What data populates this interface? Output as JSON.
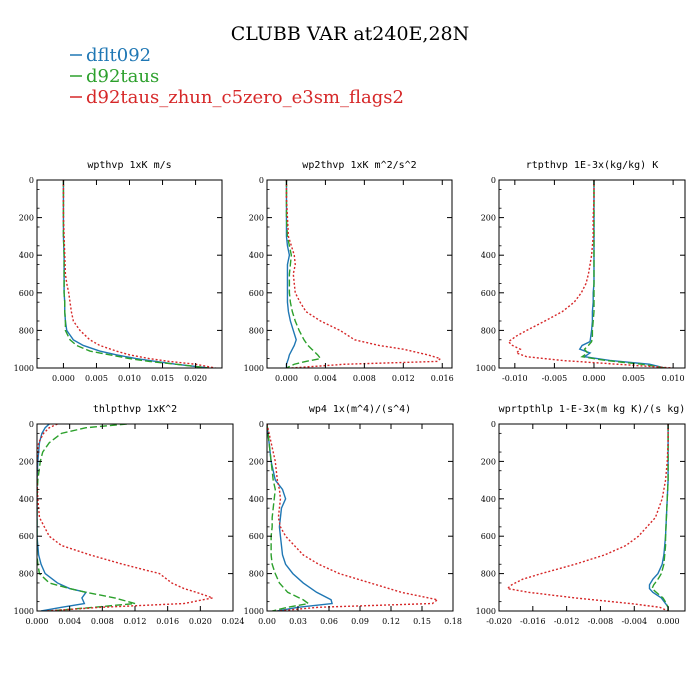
{
  "figure": {
    "title": "CLUBB VAR at240E,28N",
    "legend": [
      {
        "label": "dflt092",
        "color": "#1f77b4"
      },
      {
        "label": "d92taus",
        "color": "#2ca02c"
      },
      {
        "label": "d92taus_zhun_c5zero_e3sm_flags2",
        "color": "#d62728"
      }
    ]
  },
  "chart_data": [
    {
      "type": "line",
      "title": "wpthvp   1xK m/s",
      "ylim": [
        1000,
        0
      ],
      "yticks": [
        0,
        200,
        400,
        600,
        800,
        1000
      ],
      "xlim": [
        -0.004,
        0.024
      ],
      "xticks": [
        0,
        0.005,
        0.01,
        0.015,
        0.02
      ],
      "xticklabels": [
        "0.000",
        "0.005",
        "0.010",
        "0.015",
        "0.020"
      ],
      "levels": [
        0,
        100,
        200,
        300,
        400,
        500,
        550,
        600,
        650,
        700,
        750,
        800,
        850,
        880,
        910,
        930,
        950,
        965,
        980,
        1000
      ],
      "series": [
        {
          "name": "dflt092",
          "color": "#1f77b4",
          "dash": "none",
          "values": [
            0,
            0.0,
            0.0,
            0.0,
            0.0001,
            0.0001,
            0.0001,
            0.0001,
            0.0002,
            0.0002,
            0.0003,
            0.0005,
            0.0015,
            0.003,
            0.0055,
            0.008,
            0.011,
            0.014,
            0.017,
            0.022
          ]
        },
        {
          "name": "d92taus",
          "color": "#2ca02c",
          "dash": "7,3",
          "values": [
            0,
            0.0,
            0.0,
            0.0,
            0.0001,
            0.0001,
            0.0001,
            0.0001,
            0.0002,
            0.0002,
            0.0003,
            0.0003,
            0.001,
            0.002,
            0.004,
            0.007,
            0.01,
            0.013,
            0.017,
            0.022
          ]
        },
        {
          "name": "d92taus_zhun_c5zero_e3sm_flags2",
          "color": "#d62728",
          "dash": "2,2",
          "values": [
            0,
            0.0,
            0.0,
            0.0001,
            0.0002,
            0.0003,
            0.0005,
            0.0008,
            0.001,
            0.0012,
            0.0015,
            0.0025,
            0.004,
            0.0055,
            0.008,
            0.01,
            0.013,
            0.016,
            0.02,
            0.023
          ]
        }
      ]
    },
    {
      "type": "line",
      "title": "wp2thvp   1xK m^2/s^2",
      "ylim": [
        1000,
        0
      ],
      "yticks": [
        0,
        200,
        400,
        600,
        800,
        1000
      ],
      "xlim": [
        -0.002,
        0.017
      ],
      "xticks": [
        0,
        0.004,
        0.008,
        0.012,
        0.016
      ],
      "xticklabels": [
        "0.000",
        "0.004",
        "0.008",
        "0.012",
        "0.016"
      ],
      "levels": [
        0,
        100,
        200,
        300,
        350,
        400,
        450,
        500,
        600,
        650,
        700,
        750,
        800,
        850,
        880,
        900,
        930,
        950,
        965,
        980,
        1000
      ],
      "series": [
        {
          "name": "dflt092",
          "color": "#1f77b4",
          "dash": "none",
          "values": [
            0,
            0.0,
            0.0,
            0.0,
            0.0001,
            0.0003,
            0.0001,
            0.0001,
            0.0001,
            0.0001,
            0.0002,
            0.0004,
            0.0007,
            0.001,
            0.0008,
            0.0006,
            0.0003,
            0.0002,
            0.0001,
            0.0,
            0.0
          ]
        },
        {
          "name": "d92taus",
          "color": "#2ca02c",
          "dash": "7,3",
          "values": [
            0,
            0.0,
            0.0,
            0.0001,
            0.0003,
            0.0005,
            0.0004,
            0.0003,
            0.0003,
            0.0004,
            0.0006,
            0.0009,
            0.0013,
            0.0018,
            0.0022,
            0.0026,
            0.0032,
            0.0035,
            0.002,
            0.0008,
            0.0
          ]
        },
        {
          "name": "d92taus_zhun_c5zero_e3sm_flags2",
          "color": "#d62728",
          "dash": "2,2",
          "values": [
            0,
            0.0,
            0.0001,
            0.0002,
            0.0005,
            0.0008,
            0.0009,
            0.0007,
            0.0009,
            0.0014,
            0.002,
            0.0035,
            0.0055,
            0.007,
            0.0095,
            0.012,
            0.0145,
            0.0158,
            0.0155,
            0.006,
            0.0005
          ]
        }
      ]
    },
    {
      "type": "line",
      "title": "rtpthvp   1E-3x(kg/kg) K",
      "ylim": [
        1000,
        0
      ],
      "yticks": [
        0,
        200,
        400,
        600,
        800,
        1000
      ],
      "xlim": [
        -0.012,
        0.0115
      ],
      "xticks": [
        -0.01,
        -0.005,
        0,
        0.005,
        0.01
      ],
      "xticklabels": [
        "-0.010",
        "-0.005",
        "0.000",
        "0.005",
        "0.010"
      ],
      "levels": [
        0,
        100,
        200,
        300,
        400,
        500,
        550,
        600,
        650,
        700,
        750,
        800,
        830,
        860,
        880,
        900,
        920,
        940,
        960,
        980,
        1000
      ],
      "series": [
        {
          "name": "dflt092",
          "color": "#1f77b4",
          "dash": "none",
          "values": [
            0,
            0.0,
            0.0,
            0.0,
            0.0,
            0.0,
            0.0,
            -0.0001,
            -0.0001,
            -0.0002,
            -0.0002,
            -0.0003,
            -0.0004,
            -0.0005,
            -0.0015,
            -0.0018,
            -0.0005,
            -0.0012,
            0.002,
            0.007,
            0.009
          ]
        },
        {
          "name": "d92taus",
          "color": "#2ca02c",
          "dash": "7,3",
          "values": [
            0,
            0.0,
            0.0,
            0.0,
            0.0,
            0.0,
            0.0,
            0.0,
            0.0,
            0.0,
            -0.0001,
            -0.0002,
            -0.0002,
            -0.0003,
            -0.0007,
            -0.0012,
            -0.0008,
            -0.0015,
            0.0015,
            0.006,
            0.009
          ]
        },
        {
          "name": "d92taus_zhun_c5zero_e3sm_flags2",
          "color": "#d62728",
          "dash": "2,2",
          "values": [
            0,
            0.0,
            -0.0001,
            -0.0001,
            -0.0003,
            -0.0007,
            -0.001,
            -0.0016,
            -0.0025,
            -0.004,
            -0.0062,
            -0.0085,
            -0.0098,
            -0.0108,
            -0.0103,
            -0.0093,
            -0.0098,
            -0.0085,
            -0.004,
            0.003,
            0.01
          ]
        }
      ]
    },
    {
      "type": "line",
      "title": "thlpthvp   1xK^2",
      "ylim": [
        1000,
        0
      ],
      "yticks": [
        0,
        200,
        400,
        600,
        800,
        1000
      ],
      "xlim": [
        0,
        0.024
      ],
      "xticks": [
        0,
        0.004,
        0.008,
        0.012,
        0.016,
        0.02,
        0.024
      ],
      "xticklabels": [
        "0.000",
        "0.004",
        "0.008",
        "0.012",
        "0.016",
        "0.020",
        "0.024"
      ],
      "levels": [
        0,
        20,
        50,
        100,
        150,
        200,
        300,
        400,
        500,
        600,
        650,
        700,
        750,
        800,
        850,
        880,
        900,
        930,
        960,
        980,
        1000
      ],
      "series": [
        {
          "name": "dflt092",
          "color": "#1f77b4",
          "dash": "none",
          "values": [
            0.0015,
            0.001,
            0.0006,
            0.0003,
            0.0002,
            0.0001,
            0.0,
            0.0,
            0.0,
            0.0,
            0.0001,
            0.0002,
            0.0005,
            0.001,
            0.0025,
            0.004,
            0.006,
            0.0055,
            0.0058,
            0.003,
            0.0005
          ]
        },
        {
          "name": "d92taus",
          "color": "#2ca02c",
          "dash": "7,3",
          "values": [
            0.011,
            0.006,
            0.003,
            0.0015,
            0.0007,
            0.0004,
            0.0001,
            0.0,
            0.0,
            0.0,
            0.0,
            0.0,
            0.0001,
            0.0003,
            0.0015,
            0.004,
            0.006,
            0.0095,
            0.012,
            0.007,
            0.0015
          ]
        },
        {
          "name": "d92taus_zhun_c5zero_e3sm_flags2",
          "color": "#d62728",
          "dash": "2,2",
          "values": [
            0.0025,
            0.0015,
            0.0008,
            0.0002,
            0.0001,
            0.0,
            0.0,
            0.0001,
            0.0003,
            0.0015,
            0.003,
            0.0065,
            0.0105,
            0.015,
            0.0165,
            0.018,
            0.0195,
            0.0215,
            0.018,
            0.008,
            0.001
          ]
        }
      ]
    },
    {
      "type": "line",
      "title": "wp4   1x(m^4)/(s^4)",
      "ylim": [
        1000,
        0
      ],
      "yticks": [
        0,
        200,
        400,
        600,
        800,
        1000
      ],
      "xlim": [
        0,
        0.18
      ],
      "xticks": [
        0,
        0.03,
        0.06,
        0.09,
        0.12,
        0.15,
        0.18
      ],
      "xticklabels": [
        "0.00",
        "0.03",
        "0.06",
        "0.09",
        "0.12",
        "0.15",
        "0.18"
      ],
      "levels": [
        0,
        100,
        200,
        300,
        350,
        400,
        450,
        500,
        550,
        600,
        700,
        750,
        800,
        850,
        900,
        940,
        960,
        980,
        1000
      ],
      "series": [
        {
          "name": "dflt092",
          "color": "#1f77b4",
          "dash": "none",
          "values": [
            0,
            0.002,
            0.004,
            0.008,
            0.015,
            0.018,
            0.014,
            0.013,
            0.012,
            0.013,
            0.015,
            0.018,
            0.025,
            0.035,
            0.048,
            0.062,
            0.063,
            0.03,
            0.01
          ]
        },
        {
          "name": "d92taus",
          "color": "#2ca02c",
          "dash": "7,3",
          "values": [
            0,
            0.002,
            0.004,
            0.006,
            0.008,
            0.007,
            0.006,
            0.005,
            0.005,
            0.004,
            0.004,
            0.005,
            0.008,
            0.012,
            0.02,
            0.035,
            0.04,
            0.02,
            0.005
          ]
        },
        {
          "name": "d92taus_zhun_c5zero_e3sm_flags2",
          "color": "#d62728",
          "dash": "2,2",
          "values": [
            0,
            0.004,
            0.008,
            0.01,
            0.012,
            0.013,
            0.012,
            0.011,
            0.013,
            0.018,
            0.035,
            0.05,
            0.07,
            0.1,
            0.13,
            0.165,
            0.16,
            0.05,
            0.01
          ]
        }
      ]
    },
    {
      "type": "line",
      "title": "wprtpthlp   1-E-3x(m kg K)/(s kg)",
      "ylim": [
        1000,
        0
      ],
      "yticks": [
        0,
        200,
        400,
        600,
        800,
        1000
      ],
      "xlim": [
        -0.02,
        0.002
      ],
      "xticks": [
        -0.02,
        -0.016,
        -0.012,
        -0.008,
        -0.004,
        0
      ],
      "xticklabels": [
        "-0.020",
        "-0.016",
        "-0.012",
        "-0.008",
        "-0.004",
        "0.000"
      ],
      "levels": [
        0,
        100,
        200,
        300,
        400,
        500,
        600,
        650,
        700,
        750,
        800,
        830,
        860,
        880,
        900,
        930,
        960,
        980,
        1000
      ],
      "series": [
        {
          "name": "dflt092",
          "color": "#1f77b4",
          "dash": "none",
          "values": [
            0,
            0.0,
            0.0,
            0.0,
            -0.0001,
            -0.0002,
            -0.0003,
            -0.0004,
            -0.0005,
            -0.0007,
            -0.0012,
            -0.0018,
            -0.0022,
            -0.0022,
            -0.0018,
            -0.0008,
            -0.0003,
            0.0,
            0.0
          ]
        },
        {
          "name": "d92taus",
          "color": "#2ca02c",
          "dash": "7,3",
          "values": [
            0,
            0.0,
            0.0,
            0.0,
            -0.0001,
            -0.0002,
            -0.0003,
            -0.0003,
            -0.0004,
            -0.0005,
            -0.0008,
            -0.0012,
            -0.0017,
            -0.0019,
            -0.0014,
            -0.0006,
            -0.0002,
            0.0,
            0.0
          ]
        },
        {
          "name": "d92taus_zhun_c5zero_e3sm_flags2",
          "color": "#d62728",
          "dash": "2,2",
          "values": [
            0,
            0.0,
            -0.0001,
            -0.0003,
            -0.0007,
            -0.0015,
            -0.0035,
            -0.005,
            -0.0075,
            -0.011,
            -0.015,
            -0.0172,
            -0.0185,
            -0.019,
            -0.0165,
            -0.011,
            -0.0045,
            -0.001,
            0.0
          ]
        }
      ]
    }
  ]
}
